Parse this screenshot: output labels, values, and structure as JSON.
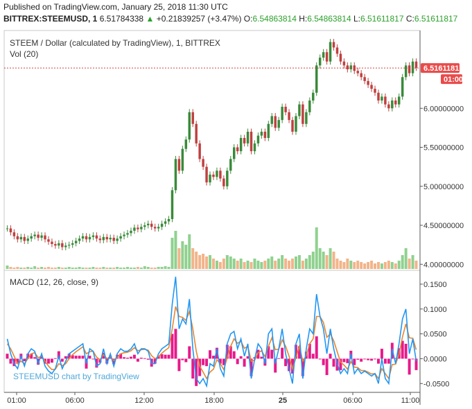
{
  "header": {
    "published": "Published on TradingView.com, January 25, 2018 11:30 UTC",
    "symbol": "BITTREX:STEEMUSD, 1",
    "last": "6.51784338",
    "change_arrow": "▲",
    "change": "+0.21839257 (+3.47%)",
    "o_label": "O:",
    "o_value": "6.54863814",
    "h_label": "H:",
    "h_value": "6.54863814",
    "l_label": "L:",
    "l_value": "6.51611817",
    "c_label": "C:",
    "c_value": "6.51611817"
  },
  "price_pane": {
    "title": "STEEM / Dollar (calculated by TradingView), 1, BITTREX",
    "vol_label": "Vol (20)",
    "price_tag": "6.51611817",
    "time_tag": "01:00"
  },
  "macd_pane": {
    "title": "MACD (12, 26, close, 9)"
  },
  "watermark": "STEEMUSD chart by TradingView",
  "colors": {
    "up": "#3a8a3a",
    "down": "#c04040",
    "macd_line": "#2196f3",
    "signal_line": "#e8862e",
    "hist_pos": "#e6007e",
    "hist_neg": "#e6007e",
    "price_tag_bg": "#e94b4b",
    "volume_up": "#8fd18f",
    "volume_down": "#f2b48a"
  },
  "chart_data": [
    {
      "type": "candlestick",
      "y_ticks": [
        4.0,
        4.5,
        5.0,
        5.5,
        6.0
      ],
      "y_tick_labels": [
        "4.00000000",
        "4.50000000",
        "5.00000000",
        "5.50000000",
        "6.00000000"
      ],
      "ylim": [
        3.94,
        6.98
      ],
      "x_tick_labels": [
        "01:00",
        "06:00",
        "12:00",
        "18:00",
        "25",
        "06:00",
        "11:00"
      ],
      "current_value": 6.51611817,
      "x": [
        0,
        1,
        2,
        3,
        4,
        5,
        6,
        7,
        8,
        9,
        10,
        11,
        12,
        13,
        14,
        15,
        16,
        17,
        18,
        19,
        20,
        21,
        22,
        23,
        24,
        25,
        26,
        27,
        28,
        29,
        30,
        31,
        32,
        33,
        34,
        35,
        36,
        37,
        38,
        39,
        40,
        41,
        42,
        43,
        44,
        45,
        46,
        47,
        48,
        49,
        50,
        51,
        52,
        53,
        54,
        55,
        56,
        57,
        58,
        59,
        60,
        61,
        62,
        63,
        64,
        65,
        66,
        67,
        68,
        69,
        70,
        71,
        72,
        73,
        74,
        75,
        76,
        77,
        78,
        79,
        80,
        81,
        82,
        83,
        84,
        85,
        86,
        87,
        88,
        89,
        90,
        91,
        92,
        93,
        94,
        95,
        96,
        97,
        98,
        99,
        100,
        101,
        102,
        103,
        104,
        105,
        106,
        107,
        108,
        109,
        110,
        111,
        112,
        113,
        114,
        115,
        116,
        117,
        118,
        119
      ],
      "close": [
        4.46,
        4.41,
        4.36,
        4.32,
        4.35,
        4.3,
        4.33,
        4.36,
        4.38,
        4.34,
        4.37,
        4.32,
        4.29,
        4.26,
        4.24,
        4.27,
        4.22,
        4.24,
        4.25,
        4.27,
        4.3,
        4.33,
        4.36,
        4.32,
        4.35,
        4.37,
        4.33,
        4.31,
        4.35,
        4.32,
        4.34,
        4.3,
        4.33,
        4.36,
        4.38,
        4.4,
        4.43,
        4.47,
        4.45,
        4.48,
        4.5,
        4.52,
        4.48,
        4.46,
        4.48,
        4.52,
        4.55,
        4.58,
        4.95,
        5.35,
        5.2,
        5.48,
        5.6,
        5.95,
        5.8,
        5.55,
        5.35,
        5.25,
        5.05,
        5.15,
        5.12,
        5.2,
        5.1,
        5.0,
        5.2,
        5.35,
        5.5,
        5.45,
        5.62,
        5.55,
        5.7,
        5.45,
        5.55,
        5.65,
        5.7,
        5.62,
        5.8,
        5.9,
        5.75,
        5.85,
        6.02,
        5.95,
        5.85,
        5.7,
        5.9,
        6.05,
        5.8,
        5.95,
        6.1,
        6.2,
        6.55,
        6.65,
        6.72,
        6.6,
        6.85,
        6.78,
        6.7,
        6.6,
        6.55,
        6.5,
        6.55,
        6.48,
        6.45,
        6.4,
        6.35,
        6.3,
        6.25,
        6.2,
        6.1,
        6.15,
        6.05,
        6.0,
        6.1,
        6.05,
        6.15,
        6.4,
        6.55,
        6.45,
        6.6,
        6.52
      ],
      "volume": [
        0.05,
        0.03,
        0.02,
        0.03,
        0.02,
        0.02,
        0.03,
        0.02,
        0.04,
        0.02,
        0.03,
        0.02,
        0.03,
        0.02,
        0.02,
        0.03,
        0.02,
        0.02,
        0.03,
        0.02,
        0.02,
        0.03,
        0.02,
        0.02,
        0.02,
        0.03,
        0.02,
        0.02,
        0.03,
        0.02,
        0.02,
        0.02,
        0.03,
        0.02,
        0.02,
        0.03,
        0.02,
        0.02,
        0.03,
        0.02,
        0.04,
        0.03,
        0.02,
        0.02,
        0.03,
        0.03,
        0.04,
        0.03,
        0.45,
        0.55,
        0.3,
        0.4,
        0.35,
        0.5,
        0.3,
        0.25,
        0.2,
        0.22,
        0.18,
        0.2,
        0.15,
        0.12,
        0.1,
        0.15,
        0.2,
        0.18,
        0.15,
        0.12,
        0.15,
        0.1,
        0.12,
        0.1,
        0.15,
        0.12,
        0.1,
        0.12,
        0.15,
        0.18,
        0.12,
        0.15,
        0.2,
        0.15,
        0.12,
        0.15,
        0.18,
        0.2,
        0.12,
        0.15,
        0.2,
        0.25,
        0.6,
        0.3,
        0.25,
        0.2,
        0.3,
        0.25,
        0.15,
        0.12,
        0.1,
        0.15,
        0.12,
        0.1,
        0.12,
        0.1,
        0.08,
        0.1,
        0.12,
        0.08,
        0.1,
        0.08,
        0.1,
        0.12,
        0.1,
        0.08,
        0.12,
        0.2,
        0.3,
        0.15,
        0.2,
        0.12
      ]
    },
    {
      "type": "line",
      "y_ticks": [
        -0.05,
        0.0,
        0.05,
        0.1,
        0.15
      ],
      "y_tick_labels": [
        "-0.0500",
        "0.0000",
        "0.0500",
        "0.1000",
        "0.1500"
      ],
      "ylim": [
        -0.065,
        0.175
      ],
      "x_tick_labels": [
        "01:00",
        "06:00",
        "12:00",
        "18:00",
        "25",
        "06:00",
        "11:00"
      ],
      "series": [
        {
          "values": [
            0.04,
            0.01,
            -0.01,
            -0.02,
            0.005,
            -0.015,
            0.01,
            0.02,
            0.015,
            -0.01,
            0.01,
            -0.015,
            -0.025,
            -0.03,
            -0.02,
            0.005,
            -0.02,
            -0.005,
            0.01,
            0.015,
            0.02,
            0.025,
            0.03,
            -0.01,
            0.02,
            0.015,
            -0.015,
            -0.01,
            0.02,
            -0.01,
            0.01,
            -0.015,
            0.01,
            0.02,
            0.015,
            0.015,
            0.02,
            0.03,
            0.01,
            0.02,
            0.02,
            0.015,
            -0.01,
            -0.01,
            0.01,
            0.02,
            0.025,
            0.03,
            0.11,
            0.165,
            0.06,
            0.08,
            0.07,
            0.12,
            0.02,
            -0.04,
            -0.05,
            -0.04,
            -0.055,
            -0.01,
            -0.015,
            0.02,
            -0.02,
            -0.035,
            0.03,
            0.05,
            0.055,
            0.02,
            0.04,
            0.005,
            0.03,
            -0.04,
            0.0,
            0.03,
            0.02,
            -0.01,
            0.05,
            0.06,
            -0.01,
            0.02,
            0.06,
            0.01,
            -0.02,
            -0.05,
            0.03,
            0.05,
            -0.04,
            0.02,
            0.06,
            0.05,
            0.13,
            0.085,
            0.06,
            0.01,
            0.06,
            0.02,
            -0.01,
            -0.03,
            -0.02,
            -0.03,
            0.01,
            -0.03,
            -0.02,
            -0.03,
            -0.025,
            -0.03,
            -0.035,
            -0.03,
            -0.05,
            0.0,
            -0.04,
            -0.05,
            0.02,
            -0.01,
            0.03,
            0.08,
            0.1,
            0.01,
            0.04,
            -0.005
          ]
        },
        {
          "values": [
            0.03,
            0.02,
            0.005,
            -0.01,
            -0.005,
            -0.01,
            0.0,
            0.01,
            0.012,
            0.002,
            0.005,
            -0.005,
            -0.015,
            -0.022,
            -0.021,
            -0.01,
            -0.014,
            -0.01,
            0.0,
            0.008,
            0.014,
            0.019,
            0.024,
            0.01,
            0.014,
            0.015,
            0.003,
            -0.002,
            0.008,
            0.0,
            0.004,
            -0.004,
            0.002,
            0.01,
            0.012,
            0.013,
            0.016,
            0.022,
            0.016,
            0.018,
            0.019,
            0.017,
            0.006,
            0.0,
            0.004,
            0.011,
            0.017,
            0.022,
            0.06,
            0.105,
            0.085,
            0.083,
            0.077,
            0.095,
            0.06,
            0.015,
            -0.015,
            -0.027,
            -0.04,
            -0.027,
            -0.021,
            -0.002,
            -0.01,
            -0.022,
            0.002,
            0.025,
            0.04,
            0.031,
            0.035,
            0.021,
            0.025,
            -0.005,
            -0.003,
            0.012,
            0.016,
            0.004,
            0.025,
            0.042,
            0.018,
            0.019,
            0.038,
            0.025,
            0.005,
            -0.02,
            0.002,
            0.025,
            -0.005,
            0.006,
            0.03,
            0.04,
            0.085,
            0.085,
            0.073,
            0.043,
            0.05,
            0.036,
            0.014,
            -0.007,
            -0.013,
            -0.021,
            -0.006,
            -0.017,
            -0.018,
            -0.024,
            -0.024,
            -0.027,
            -0.031,
            -0.03,
            -0.04,
            -0.02,
            -0.03,
            -0.04,
            -0.012,
            -0.011,
            0.009,
            0.044,
            0.07,
            0.042,
            0.041,
            0.018
          ]
        }
      ]
    }
  ]
}
